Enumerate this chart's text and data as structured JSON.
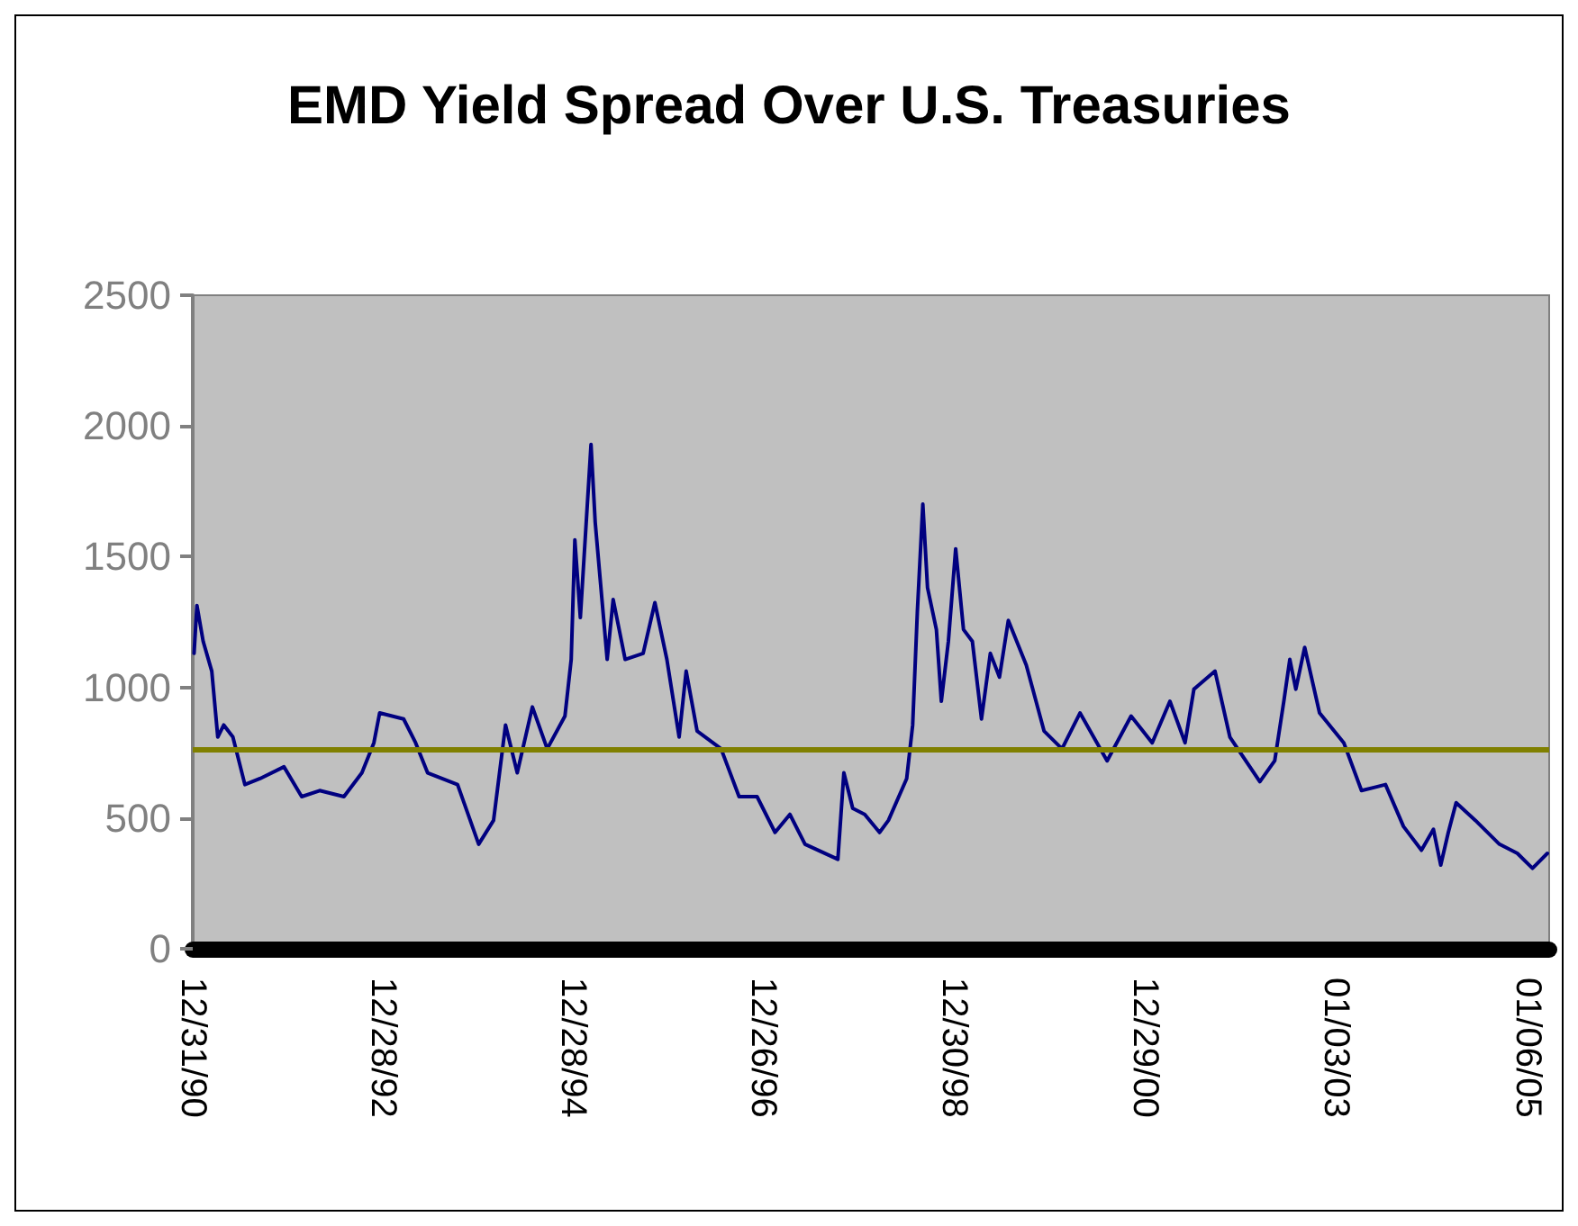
{
  "chart_data": {
    "type": "line",
    "title": "EMD Yield Spread Over U.S. Treasuries",
    "x": [
      "1991-01-05",
      "1991-01-16",
      "1991-02-09",
      "1991-03-14",
      "1991-04-06",
      "1991-04-29",
      "1991-06-03",
      "1991-07-19",
      "1991-09-15",
      "1991-12-16",
      "1992-02-22",
      "1992-05-01",
      "1992-08-02",
      "1992-10-10",
      "1992-11-25",
      "1992-12-17",
      "1993-03-19",
      "1993-05-04",
      "1993-06-19",
      "1993-10-12",
      "1994-01-01",
      "1994-02-27",
      "1994-04-14",
      "1994-05-29",
      "1994-07-26",
      "1994-09-21",
      "1994-11-28",
      "1994-12-22",
      "1995-01-05",
      "1995-01-26",
      "1995-03-08",
      "1995-03-24",
      "1995-05-09",
      "1995-06-01",
      "1995-07-17",
      "1995-09-24",
      "1995-11-08",
      "1995-12-24",
      "1996-02-09",
      "1996-03-07",
      "1996-04-18",
      "1996-07-19",
      "1996-09-26",
      "1996-12-04",
      "1997-02-11",
      "1997-04-09",
      "1997-06-06",
      "1997-10-10",
      "1997-11-02",
      "1997-12-06",
      "1998-01-21",
      "1998-03-19",
      "1998-04-22",
      "1998-07-01",
      "1998-07-24",
      "1998-08-11",
      "1998-09-01",
      "1998-09-19",
      "1998-10-23",
      "1998-11-11",
      "1998-12-08",
      "1999-01-05",
      "1999-02-04",
      "1999-03-10",
      "1999-04-14",
      "1999-05-18",
      "1999-06-22",
      "1999-07-26",
      "1999-10-03",
      "1999-12-10",
      "2000-02-17",
      "2000-04-26",
      "2000-08-08",
      "2000-11-08",
      "2001-01-28",
      "2001-04-06",
      "2001-06-03",
      "2001-07-07",
      "2001-09-26",
      "2001-11-22",
      "2002-03-17",
      "2002-05-13",
      "2002-06-17",
      "2002-07-10",
      "2002-08-02",
      "2002-09-05",
      "2002-11-01",
      "2003-02-02",
      "2003-04-11",
      "2003-07-12",
      "2003-09-19",
      "2003-11-27",
      "2004-01-12",
      "2004-02-09",
      "2004-03-09",
      "2004-04-08",
      "2004-06-21",
      "2004-09-21",
      "2004-11-29",
      "2005-01-26",
      "2005-03-24"
    ],
    "series": [
      {
        "color": "#000080",
        "values": [
          1130,
          1313,
          1176,
          1062,
          810,
          856,
          810,
          628,
          651,
          696,
          582,
          605,
          582,
          673,
          788,
          902,
          879,
          788,
          673,
          628,
          400,
          491,
          856,
          673,
          925,
          765,
          890,
          1107,
          1564,
          1267,
          1929,
          1632,
          1107,
          1336,
          1107,
          1130,
          1324,
          1107,
          810,
          1062,
          833,
          765,
          582,
          582,
          445,
          514,
          400,
          342,
          673,
          537,
          514,
          445,
          491,
          651,
          856,
          1290,
          1701,
          1381,
          1221,
          947,
          1176,
          1530,
          1221,
          1176,
          879,
          1130,
          1039,
          1256,
          1085,
          833,
          765,
          902,
          719,
          890,
          788,
          947,
          788,
          993,
          1062,
          810,
          639,
          719,
          947,
          1107,
          993,
          1153,
          902,
          788,
          605,
          628,
          468,
          377,
          457,
          320,
          445,
          559,
          491,
          400,
          365,
          308,
          365
        ]
      }
    ],
    "xlim": [
      "1990-12-31",
      "2005-03-31"
    ],
    "xticks": [
      {
        "value": "1990-12-31",
        "label": "12/31/90"
      },
      {
        "value": "1992-12-28",
        "label": "12/28/92"
      },
      {
        "value": "1994-12-28",
        "label": "12/28/94"
      },
      {
        "value": "1996-12-26",
        "label": "12/26/96"
      },
      {
        "value": "1998-12-30",
        "label": "12/30/98"
      },
      {
        "value": "2000-12-29",
        "label": "12/29/00"
      },
      {
        "value": "2003-01-03",
        "label": "01/03/03"
      },
      {
        "value": "2005-01-06",
        "label": "01/06/05"
      }
    ],
    "ylim": [
      0,
      2500
    ],
    "yticks": [
      0,
      500,
      1000,
      1500,
      2000,
      2500
    ],
    "ref_lines": [
      {
        "axis": "y",
        "value": 765,
        "color": "#808000"
      }
    ],
    "grid": false,
    "marker": "none",
    "line_style": "solid"
  }
}
